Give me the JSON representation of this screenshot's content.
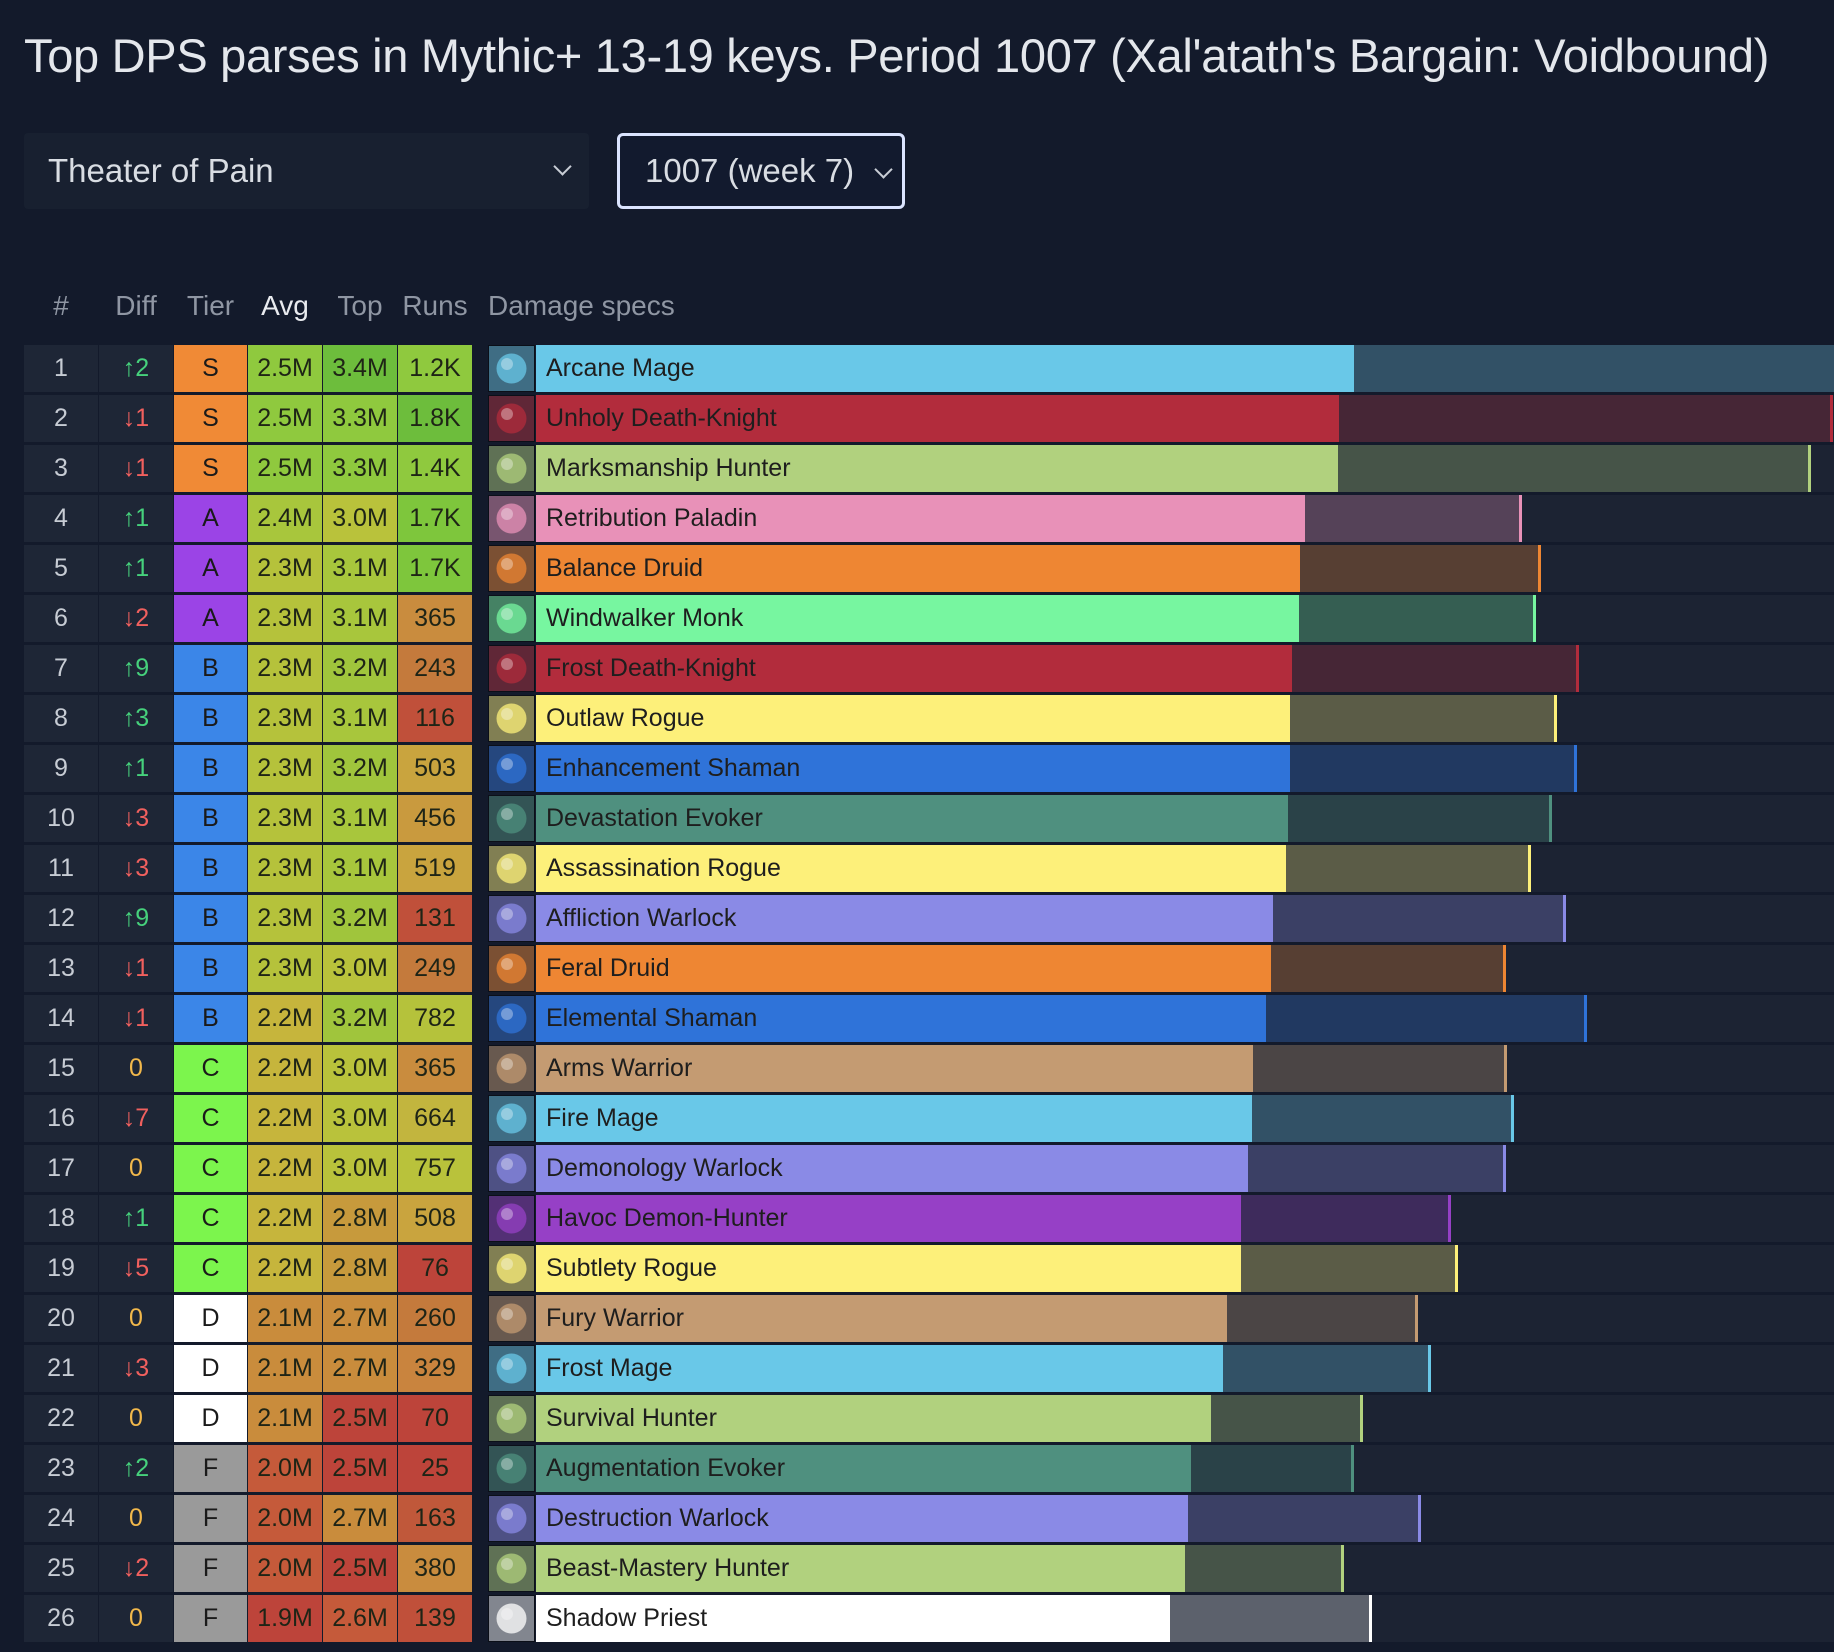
{
  "title": "Top DPS parses in Mythic+ 13-19 keys. Period 1007 (Xal'atath's Bargain: Voidbound)",
  "filters": {
    "dungeon": "Theater of Pain",
    "period": "1007 (week 7)"
  },
  "columns": {
    "rank": "#",
    "diff": "Diff",
    "tier": "Tier",
    "avg": "Avg",
    "top": "Top",
    "runs": "Runs",
    "specs": "Damage specs"
  },
  "scale_max": "3.4M",
  "colors": {
    "diff_up": "#46d17c",
    "diff_down": "#f0605e",
    "diff_zero": "#f2b84b",
    "tier_S": "#f08a36",
    "tier_A": "#9b44e6",
    "tier_B": "#3b86e8",
    "tier_C": "#7cf54d",
    "tier_D": "#ffffff",
    "tier_F": "#9a9a9a"
  },
  "rows": [
    {
      "rank": "1",
      "diff": "↑2",
      "tier": "S",
      "avg": "2.5M",
      "top": "3.4M",
      "runs": "1.2K",
      "spec": "Arcane Mage",
      "color": "#69c8e8",
      "icon": "arcane-mage-icon",
      "avg_frac": 0.627,
      "top_frac": 0.999,
      "c_avg": "#8fc93e",
      "c_top": "#6dbd3c",
      "c_runs": "#8fc93e"
    },
    {
      "rank": "2",
      "diff": "↓1",
      "tier": "S",
      "avg": "2.5M",
      "top": "3.3M",
      "runs": "1.8K",
      "spec": "Unholy Death-Knight",
      "color": "#b22c3c",
      "icon": "unholy-death-knight-icon",
      "avg_frac": 0.616,
      "top_frac": 0.995,
      "c_avg": "#8fc93e",
      "c_top": "#8fc93e",
      "c_runs": "#6dbd3c"
    },
    {
      "rank": "3",
      "diff": "↓1",
      "tier": "S",
      "avg": "2.5M",
      "top": "3.3M",
      "runs": "1.4K",
      "spec": "Marksmanship Hunter",
      "color": "#b1d17e",
      "icon": "marksmanship-hunter-icon",
      "avg_frac": 0.615,
      "top_frac": 0.978,
      "c_avg": "#8fc93e",
      "c_top": "#8fc93e",
      "c_runs": "#8fc93e"
    },
    {
      "rank": "4",
      "diff": "↑1",
      "tier": "A",
      "avg": "2.4M",
      "top": "3.0M",
      "runs": "1.7K",
      "spec": "Retribution Paladin",
      "color": "#e891b8",
      "icon": "retribution-paladin-icon",
      "avg_frac": 0.59,
      "top_frac": 0.756,
      "c_avg": "#a8c63c",
      "c_top": "#b9c23b",
      "c_runs": "#7ec63c"
    },
    {
      "rank": "5",
      "diff": "↑1",
      "tier": "A",
      "avg": "2.3M",
      "top": "3.1M",
      "runs": "1.7K",
      "spec": "Balance Druid",
      "color": "#ee8633",
      "icon": "balance-druid-icon",
      "avg_frac": 0.586,
      "top_frac": 0.771,
      "c_avg": "#b5c23b",
      "c_top": "#a8c63c",
      "c_runs": "#7ec63c"
    },
    {
      "rank": "6",
      "diff": "↓2",
      "tier": "A",
      "avg": "2.3M",
      "top": "3.1M",
      "runs": "365",
      "spec": "Windwalker Monk",
      "color": "#77f6a0",
      "icon": "windwalker-monk-icon",
      "avg_frac": 0.585,
      "top_frac": 0.767,
      "c_avg": "#b5c23b",
      "c_top": "#a8c63c",
      "c_runs": "#c98c3e"
    },
    {
      "rank": "7",
      "diff": "↑9",
      "tier": "B",
      "avg": "2.3M",
      "top": "3.2M",
      "runs": "243",
      "spec": "Frost Death-Knight",
      "color": "#b22c3c",
      "icon": "frost-death-knight-icon",
      "avg_frac": 0.58,
      "top_frac": 0.8,
      "c_avg": "#b5c23b",
      "c_top": "#a0c53c",
      "c_runs": "#c47a3c"
    },
    {
      "rank": "8",
      "diff": "↑3",
      "tier": "B",
      "avg": "2.3M",
      "top": "3.1M",
      "runs": "116",
      "spec": "Outlaw Rogue",
      "color": "#fdf07a",
      "icon": "outlaw-rogue-icon",
      "avg_frac": 0.578,
      "top_frac": 0.783,
      "c_avg": "#b5c23b",
      "c_top": "#a8c63c",
      "c_runs": "#c0503a"
    },
    {
      "rank": "9",
      "diff": "↑1",
      "tier": "B",
      "avg": "2.3M",
      "top": "3.2M",
      "runs": "503",
      "spec": "Enhancement Shaman",
      "color": "#2f73d9",
      "icon": "enhancement-shaman-icon",
      "avg_frac": 0.578,
      "top_frac": 0.798,
      "c_avg": "#b5c23b",
      "c_top": "#a0c53c",
      "c_runs": "#c9a43e"
    },
    {
      "rank": "10",
      "diff": "↓3",
      "tier": "B",
      "avg": "2.3M",
      "top": "3.1M",
      "runs": "456",
      "spec": "Devastation Evoker",
      "color": "#4f907f",
      "icon": "devastation-evoker-icon",
      "avg_frac": 0.577,
      "top_frac": 0.779,
      "c_avg": "#b5c23b",
      "c_top": "#a8c63c",
      "c_runs": "#c99a3e"
    },
    {
      "rank": "11",
      "diff": "↓3",
      "tier": "B",
      "avg": "2.3M",
      "top": "3.1M",
      "runs": "519",
      "spec": "Assassination Rogue",
      "color": "#fdf07a",
      "icon": "assassination-rogue-icon",
      "avg_frac": 0.575,
      "top_frac": 0.763,
      "c_avg": "#b5c23b",
      "c_top": "#a8c63c",
      "c_runs": "#c9a43e"
    },
    {
      "rank": "12",
      "diff": "↑9",
      "tier": "B",
      "avg": "2.3M",
      "top": "3.2M",
      "runs": "131",
      "spec": "Affliction Warlock",
      "color": "#8a8ae6",
      "icon": "affliction-warlock-icon",
      "avg_frac": 0.565,
      "top_frac": 0.79,
      "c_avg": "#b5c23b",
      "c_top": "#a0c53c",
      "c_runs": "#c0503a"
    },
    {
      "rank": "13",
      "diff": "↓1",
      "tier": "B",
      "avg": "2.3M",
      "top": "3.0M",
      "runs": "249",
      "spec": "Feral Druid",
      "color": "#ee8633",
      "icon": "feral-druid-icon",
      "avg_frac": 0.564,
      "top_frac": 0.744,
      "c_avg": "#b5c23b",
      "c_top": "#b9c23b",
      "c_runs": "#c47a3c"
    },
    {
      "rank": "14",
      "diff": "↓1",
      "tier": "B",
      "avg": "2.2M",
      "top": "3.2M",
      "runs": "782",
      "spec": "Elemental Shaman",
      "color": "#2f73d9",
      "icon": "elemental-shaman-icon",
      "avg_frac": 0.56,
      "top_frac": 0.806,
      "c_avg": "#c6b53c",
      "c_top": "#a0c53c",
      "c_runs": "#b5c23b"
    },
    {
      "rank": "15",
      "diff": "0",
      "tier": "C",
      "avg": "2.2M",
      "top": "3.0M",
      "runs": "365",
      "spec": "Arms Warrior",
      "color": "#c49b72",
      "icon": "arms-warrior-icon",
      "avg_frac": 0.55,
      "top_frac": 0.745,
      "c_avg": "#c6b53c",
      "c_top": "#b9c23b",
      "c_runs": "#c98c3e"
    },
    {
      "rank": "16",
      "diff": "↓7",
      "tier": "C",
      "avg": "2.2M",
      "top": "3.0M",
      "runs": "664",
      "spec": "Fire Mage",
      "color": "#69c8e8",
      "icon": "fire-mage-icon",
      "avg_frac": 0.549,
      "top_frac": 0.75,
      "c_avg": "#c6b53c",
      "c_top": "#b9c23b",
      "c_runs": "#c2b53e"
    },
    {
      "rank": "17",
      "diff": "0",
      "tier": "C",
      "avg": "2.2M",
      "top": "3.0M",
      "runs": "757",
      "spec": "Demonology Warlock",
      "color": "#8a8ae6",
      "icon": "demonology-warlock-icon",
      "avg_frac": 0.546,
      "top_frac": 0.744,
      "c_avg": "#c6b53c",
      "c_top": "#b9c23b",
      "c_runs": "#b9c23b"
    },
    {
      "rank": "18",
      "diff": "↑1",
      "tier": "C",
      "avg": "2.2M",
      "top": "2.8M",
      "runs": "508",
      "spec": "Havoc Demon-Hunter",
      "color": "#9640c6",
      "icon": "havoc-demon-hunter-icon",
      "avg_frac": 0.541,
      "top_frac": 0.702,
      "c_avg": "#c6b53c",
      "c_top": "#c79a3c",
      "c_runs": "#c9a43e"
    },
    {
      "rank": "19",
      "diff": "↓5",
      "tier": "C",
      "avg": "2.2M",
      "top": "2.8M",
      "runs": "76",
      "spec": "Subtlety Rogue",
      "color": "#fdf07a",
      "icon": "subtlety-rogue-icon",
      "avg_frac": 0.541,
      "top_frac": 0.707,
      "c_avg": "#c6b53c",
      "c_top": "#c79a3c",
      "c_runs": "#bd443a"
    },
    {
      "rank": "20",
      "diff": "0",
      "tier": "D",
      "avg": "2.1M",
      "top": "2.7M",
      "runs": "260",
      "spec": "Fury Warrior",
      "color": "#c49b72",
      "icon": "fury-warrior-icon",
      "avg_frac": 0.53,
      "top_frac": 0.676,
      "c_avg": "#c98c3c",
      "c_top": "#c98c3c",
      "c_runs": "#c47a3c"
    },
    {
      "rank": "21",
      "diff": "↓3",
      "tier": "D",
      "avg": "2.1M",
      "top": "2.7M",
      "runs": "329",
      "spec": "Frost Mage",
      "color": "#69c8e8",
      "icon": "frost-mage-icon",
      "avg_frac": 0.527,
      "top_frac": 0.686,
      "c_avg": "#c98c3c",
      "c_top": "#c98c3c",
      "c_runs": "#c9843e"
    },
    {
      "rank": "22",
      "diff": "0",
      "tier": "D",
      "avg": "2.1M",
      "top": "2.5M",
      "runs": "70",
      "spec": "Survival Hunter",
      "color": "#b1d17e",
      "icon": "survival-hunter-icon",
      "avg_frac": 0.518,
      "top_frac": 0.634,
      "c_avg": "#c98c3c",
      "c_top": "#bd443a",
      "c_runs": "#bd443a"
    },
    {
      "rank": "23",
      "diff": "↑2",
      "tier": "F",
      "avg": "2.0M",
      "top": "2.5M",
      "runs": "25",
      "spec": "Augmentation Evoker",
      "color": "#4f907f",
      "icon": "augmentation-evoker-icon",
      "avg_frac": 0.502,
      "top_frac": 0.627,
      "c_avg": "#c55a3a",
      "c_top": "#bd443a",
      "c_runs": "#bd443a"
    },
    {
      "rank": "24",
      "diff": "0",
      "tier": "F",
      "avg": "2.0M",
      "top": "2.7M",
      "runs": "163",
      "spec": "Destruction Warlock",
      "color": "#8a8ae6",
      "icon": "destruction-warlock-icon",
      "avg_frac": 0.5,
      "top_frac": 0.679,
      "c_avg": "#c55a3a",
      "c_top": "#c98c3c",
      "c_runs": "#c0583a"
    },
    {
      "rank": "25",
      "diff": "↓2",
      "tier": "F",
      "avg": "2.0M",
      "top": "2.5M",
      "runs": "380",
      "spec": "Beast-Mastery Hunter",
      "color": "#b1d17e",
      "icon": "beast-mastery-hunter-icon",
      "avg_frac": 0.498,
      "top_frac": 0.62,
      "c_avg": "#c55a3a",
      "c_top": "#bd443a",
      "c_runs": "#c98c3e"
    },
    {
      "rank": "26",
      "diff": "0",
      "tier": "F",
      "avg": "1.9M",
      "top": "2.6M",
      "runs": "139",
      "spec": "Shadow Priest",
      "color": "#ffffff",
      "icon": "shadow-priest-icon",
      "avg_frac": 0.486,
      "top_frac": 0.641,
      "c_avg": "#bd443a",
      "c_top": "#c55a3a",
      "c_runs": "#c0503a"
    }
  ]
}
